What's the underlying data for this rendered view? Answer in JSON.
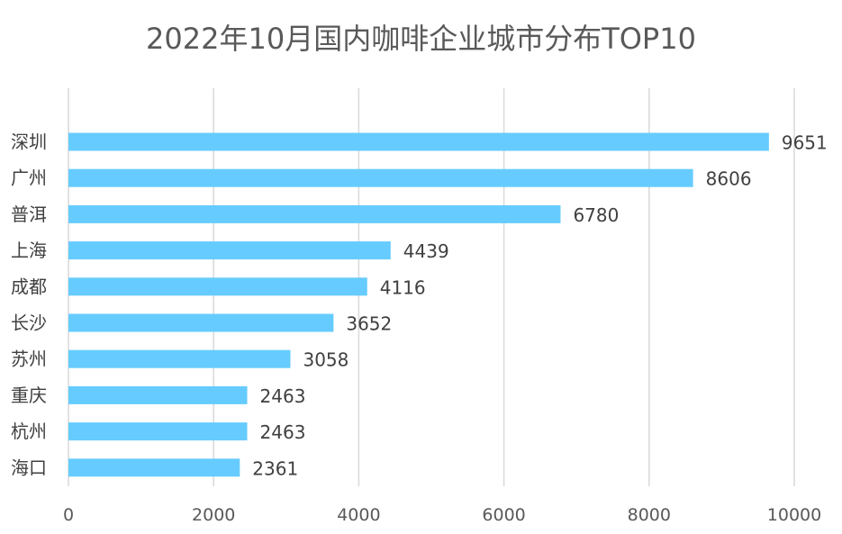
{
  "chart_data": {
    "type": "bar",
    "orientation": "horizontal",
    "title": "2022年10月国内咖啡企业城市分布TOP10",
    "categories": [
      "深圳",
      "广州",
      "普洱",
      "上海",
      "成都",
      "长沙",
      "苏州",
      "重庆",
      "杭州",
      "海口"
    ],
    "values": [
      9651,
      8606,
      6780,
      4439,
      4116,
      3652,
      3058,
      2463,
      2463,
      2361
    ],
    "xlim": [
      0,
      10000
    ],
    "xticks": [
      "0",
      "2000",
      "4000",
      "6000",
      "8000",
      "10000"
    ],
    "xlabel": "",
    "ylabel": "",
    "bar_color": "#66CCFF",
    "grid": true,
    "data_labels": true
  }
}
